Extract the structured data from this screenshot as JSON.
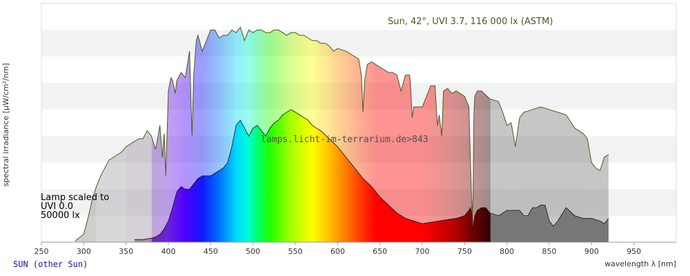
{
  "chart_data": {
    "type": "area",
    "title": "Sun, 42°, UVI 3.7, 116 000 lx (ASTM)",
    "watermark": "lamps.licht-im-terrarium.de>843",
    "xlabel": "wavelength λ [nm]",
    "ylabel": "spectral irradiance [µW/cm²/nm]",
    "xlim": [
      250,
      1000
    ],
    "xticks": [
      250,
      300,
      350,
      400,
      450,
      500,
      550,
      600,
      650,
      700,
      750,
      800,
      850,
      900,
      950
    ],
    "ylim": [
      0,
      9
    ],
    "grid": "horizontal bands",
    "series": [
      {
        "name": "SUN (other Sun)",
        "fill_color": "#aaaaaa",
        "line_color": "#4b5a23",
        "x": [
          290,
          300,
          305,
          310,
          315,
          320,
          325,
          330,
          335,
          340,
          345,
          350,
          355,
          360,
          365,
          370,
          375,
          380,
          385,
          390,
          393,
          395,
          397,
          400,
          403,
          405,
          408,
          410,
          415,
          420,
          425,
          428,
          430,
          433,
          435,
          440,
          445,
          450,
          455,
          460,
          465,
          470,
          475,
          480,
          485,
          490,
          495,
          500,
          505,
          510,
          515,
          520,
          525,
          530,
          535,
          540,
          545,
          550,
          555,
          560,
          565,
          570,
          575,
          580,
          585,
          590,
          595,
          600,
          610,
          620,
          625,
          628,
          630,
          632,
          635,
          640,
          645,
          650,
          655,
          660,
          665,
          670,
          675,
          680,
          685,
          686,
          688,
          690,
          695,
          700,
          710,
          715,
          718,
          720,
          723,
          725,
          730,
          735,
          740,
          745,
          750,
          755,
          757,
          759,
          760,
          761,
          762,
          765,
          770,
          780,
          790,
          795,
          800,
          805,
          810,
          815,
          820,
          830,
          840,
          850,
          860,
          870,
          880,
          890,
          895,
          900,
          905,
          910,
          915,
          920
        ],
        "y": [
          0.05,
          0.3,
          0.9,
          1.6,
          2.1,
          2.5,
          2.8,
          3.1,
          3.2,
          3.3,
          3.4,
          3.6,
          3.7,
          3.8,
          3.9,
          3.9,
          4.2,
          4.0,
          3.5,
          4.4,
          3.2,
          4.1,
          2.5,
          5.7,
          6.2,
          6.1,
          5.6,
          6.1,
          6.4,
          6.2,
          7.2,
          4.0,
          6.3,
          7.6,
          7.8,
          7.2,
          7.6,
          8.0,
          8.0,
          7.7,
          7.8,
          7.8,
          8.0,
          7.9,
          8.1,
          7.6,
          8.0,
          7.9,
          8.0,
          8.0,
          7.9,
          7.9,
          8.0,
          8.0,
          7.9,
          7.8,
          7.9,
          7.9,
          7.8,
          7.8,
          7.7,
          7.6,
          7.6,
          7.5,
          7.5,
          7.4,
          7.2,
          7.3,
          7.2,
          7.0,
          6.9,
          6.3,
          4.9,
          6.1,
          6.7,
          6.8,
          6.7,
          6.6,
          6.5,
          6.4,
          6.4,
          6.3,
          5.7,
          6.3,
          6.3,
          6.0,
          4.7,
          5.1,
          5.1,
          5.1,
          5.9,
          5.9,
          4.4,
          4.8,
          4.0,
          5.7,
          5.8,
          5.6,
          5.7,
          5.6,
          5.5,
          5.1,
          3.0,
          1.0,
          1.7,
          4.8,
          5.5,
          5.7,
          5.7,
          5.4,
          5.3,
          4.9,
          4.4,
          4.5,
          3.6,
          4.7,
          4.9,
          5.0,
          5.1,
          5.0,
          4.9,
          4.8,
          4.3,
          4.1,
          3.9,
          3.0,
          2.8,
          2.7,
          3.2,
          3.3
        ]
      },
      {
        "name": "Lamp scaled to UVI 0.0 50000 lx",
        "fill_color": "#333333",
        "line_color": "#111111",
        "x": [
          360,
          370,
          380,
          385,
          390,
          395,
          400,
          405,
          410,
          415,
          420,
          425,
          430,
          435,
          440,
          445,
          450,
          455,
          460,
          465,
          470,
          475,
          480,
          485,
          490,
          495,
          500,
          505,
          510,
          515,
          520,
          525,
          530,
          535,
          540,
          545,
          550,
          555,
          560,
          565,
          570,
          575,
          580,
          590,
          600,
          610,
          620,
          630,
          640,
          650,
          660,
          670,
          680,
          690,
          700,
          710,
          720,
          730,
          740,
          750,
          755,
          757,
          759,
          760,
          761,
          762,
          765,
          770,
          775,
          780,
          790,
          800,
          810,
          815,
          820,
          825,
          830,
          835,
          840,
          845,
          850,
          855,
          860,
          870,
          880,
          890,
          900,
          910,
          915,
          920
        ],
        "y": [
          0.1,
          0.1,
          0.15,
          0.2,
          0.3,
          0.5,
          0.8,
          1.3,
          1.9,
          2.1,
          2.0,
          2.0,
          2.2,
          2.4,
          2.5,
          2.5,
          2.5,
          2.6,
          2.7,
          2.8,
          3.0,
          3.6,
          4.4,
          4.6,
          4.3,
          4.0,
          4.3,
          4.4,
          4.2,
          4.0,
          4.3,
          4.5,
          4.6,
          4.8,
          4.9,
          5.0,
          4.9,
          4.8,
          4.7,
          4.6,
          4.4,
          4.3,
          4.2,
          3.9,
          3.6,
          3.2,
          2.8,
          2.4,
          2.1,
          1.7,
          1.4,
          1.1,
          0.9,
          0.8,
          0.7,
          0.75,
          0.8,
          0.85,
          0.9,
          1.0,
          1.2,
          1.3,
          1.0,
          0.4,
          0.8,
          1.0,
          1.2,
          1.3,
          1.3,
          1.1,
          1.0,
          1.2,
          1.2,
          1.2,
          1.0,
          1.0,
          1.3,
          1.3,
          1.4,
          1.4,
          0.8,
          0.6,
          0.8,
          1.3,
          1.0,
          0.9,
          0.9,
          0.8,
          0.7,
          0.9
        ]
      }
    ],
    "annotations": [
      "Lamp scaled to",
      "UVI 0.0",
      "50000 lx"
    ]
  },
  "footer": {
    "link_text": "SUN (other Sun)"
  }
}
